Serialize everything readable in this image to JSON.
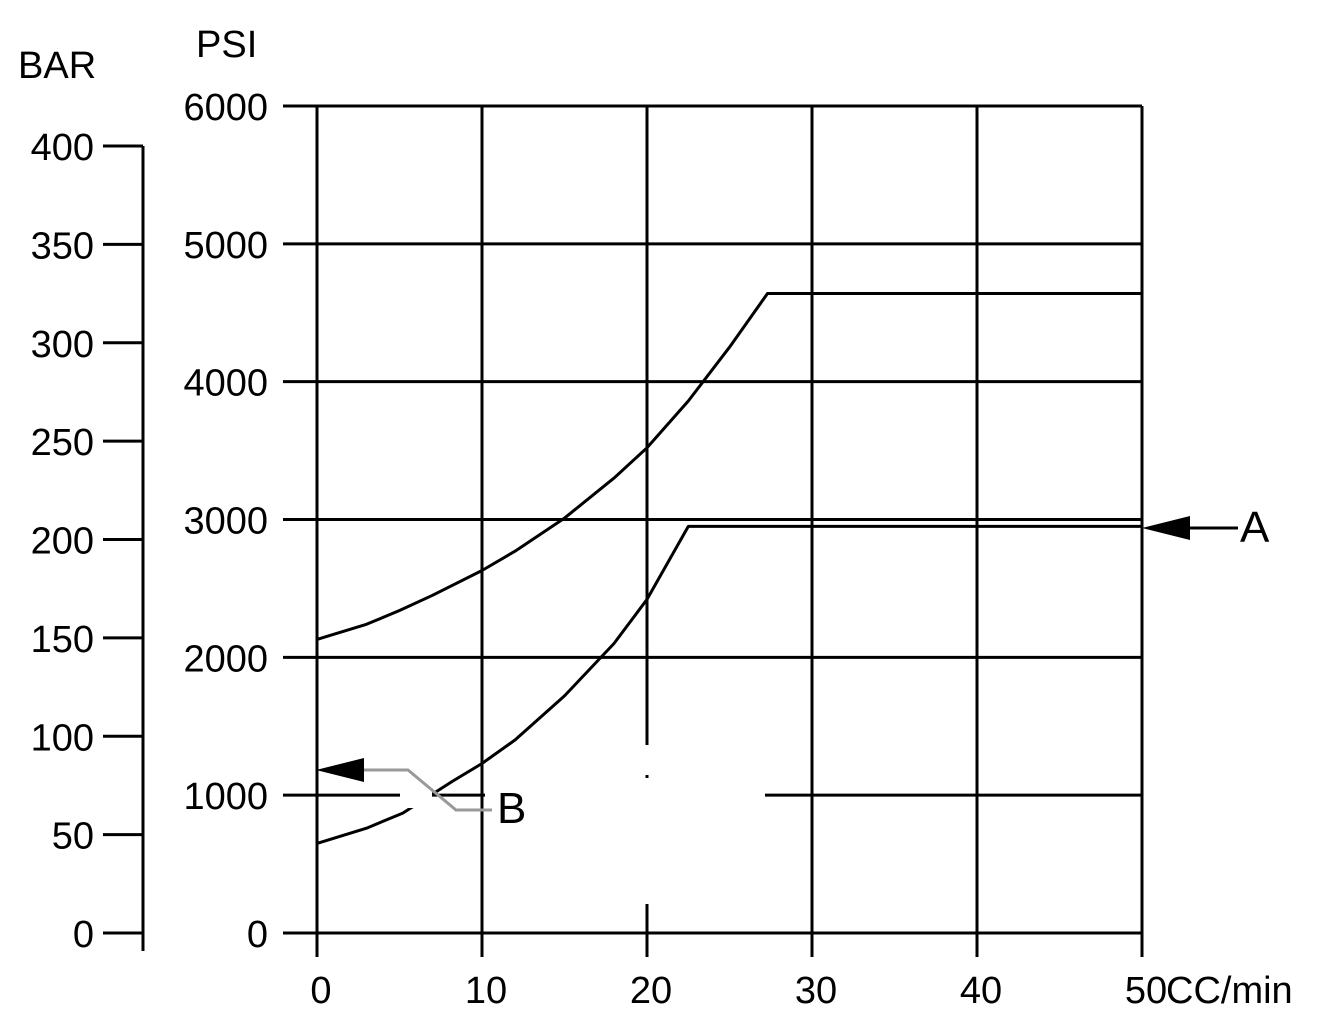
{
  "chart_data": {
    "type": "line",
    "x_axis": {
      "unit_label": "CC/min",
      "range": [
        0,
        50
      ],
      "ticks": [
        0,
        10,
        20,
        30,
        40,
        50
      ],
      "tick_labels": [
        "0",
        "10",
        "20",
        "30",
        "40",
        "50"
      ]
    },
    "y_axis_psi": {
      "unit_label": "PSI",
      "range": [
        0,
        6000
      ],
      "ticks": [
        0,
        1000,
        2000,
        3000,
        4000,
        5000,
        6000
      ],
      "tick_labels": [
        "0",
        "1000",
        "2000",
        "3000",
        "4000",
        "5000",
        "6000"
      ]
    },
    "y_axis_bar": {
      "unit_label": "BAR",
      "range": [
        0,
        400
      ],
      "ticks": [
        0,
        50,
        100,
        150,
        200,
        250,
        300,
        350,
        400
      ],
      "tick_labels": [
        "0",
        "50",
        "100",
        "150",
        "200",
        "250",
        "300",
        "350",
        "400"
      ]
    },
    "grid": true,
    "series": [
      {
        "key": "upper",
        "x": [
          0,
          3,
          5,
          7,
          10,
          12,
          15,
          18,
          20,
          22.5,
          25,
          27.3,
          30,
          40,
          50
        ],
        "y": [
          2130,
          2240,
          2340,
          2450,
          2630,
          2770,
          3010,
          3300,
          3520,
          3860,
          4250,
          4640,
          4640,
          4640,
          4640
        ]
      },
      {
        "key": "lower",
        "x": [
          0,
          3,
          5.2,
          8.2,
          10,
          12,
          15,
          18,
          20,
          22.5,
          25,
          30,
          40,
          50
        ],
        "y": [
          650,
          760,
          870,
          1100,
          1230,
          1400,
          1720,
          2100,
          2420,
          2950,
          2950,
          2950,
          2950,
          2950
        ]
      }
    ],
    "annotations": [
      {
        "label": "A",
        "points_to": {
          "x": 50,
          "y": 2950
        }
      },
      {
        "label": "B",
        "points_to": {
          "x": 0,
          "y": 1190
        }
      }
    ]
  }
}
